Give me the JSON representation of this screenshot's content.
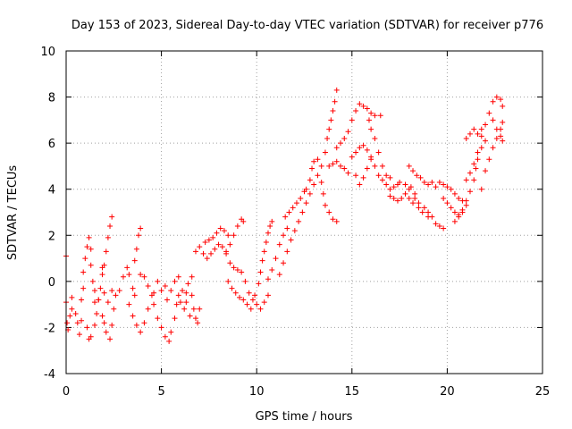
{
  "chart_data": {
    "type": "scatter",
    "title": "Day 153 of 2023, Sidereal Day-to-day VTEC variation (SDTVAR) for receiver p776",
    "xlabel": "GPS time / hours",
    "ylabel": "SDTVAR / TECUs",
    "xlim": [
      0,
      25
    ],
    "ylim": [
      -4,
      10
    ],
    "xticks": [
      "0",
      "5",
      "10",
      "15",
      "20",
      "25"
    ],
    "yticks": [
      "-4",
      "-2",
      "0",
      "2",
      "4",
      "6",
      "8",
      "10"
    ],
    "grid": true,
    "marker": "+",
    "series": [
      {
        "name": "SDTVAR",
        "color": "#ff0000",
        "points": [
          [
            0.0,
            1.1
          ],
          [
            0.0,
            -0.9
          ],
          [
            0.05,
            -1.8
          ],
          [
            0.1,
            -2.1
          ],
          [
            0.2,
            -1.5
          ],
          [
            0.3,
            -0.7
          ],
          [
            0.3,
            -1.2
          ],
          [
            0.5,
            -1.4
          ],
          [
            0.6,
            -1.8
          ],
          [
            0.7,
            -2.3
          ],
          [
            0.8,
            -1.7
          ],
          [
            0.8,
            -0.8
          ],
          [
            0.9,
            -0.3
          ],
          [
            0.9,
            0.4
          ],
          [
            1.0,
            1.0
          ],
          [
            1.1,
            1.5
          ],
          [
            1.2,
            1.9
          ],
          [
            1.3,
            1.4
          ],
          [
            1.3,
            0.7
          ],
          [
            1.4,
            0.0
          ],
          [
            1.5,
            -0.9
          ],
          [
            1.1,
            -2.0
          ],
          [
            1.2,
            -2.5
          ],
          [
            1.3,
            -2.4
          ],
          [
            1.5,
            -1.9
          ],
          [
            1.6,
            -1.4
          ],
          [
            1.7,
            -0.8
          ],
          [
            1.8,
            -0.3
          ],
          [
            1.9,
            0.3
          ],
          [
            1.9,
            0.6
          ],
          [
            2.0,
            0.7
          ],
          [
            2.1,
            1.3
          ],
          [
            2.2,
            1.9
          ],
          [
            2.3,
            2.4
          ],
          [
            2.4,
            2.8
          ],
          [
            1.9,
            -1.5
          ],
          [
            2.0,
            -1.8
          ],
          [
            2.1,
            -2.2
          ],
          [
            2.3,
            -2.5
          ],
          [
            2.4,
            -1.9
          ],
          [
            2.5,
            -1.2
          ],
          [
            2.6,
            -0.6
          ],
          [
            1.5,
            -0.4
          ],
          [
            1.7,
            -0.8
          ],
          [
            2.0,
            -0.5
          ],
          [
            2.2,
            -0.9
          ],
          [
            2.4,
            -0.4
          ],
          [
            2.8,
            -0.4
          ],
          [
            3.0,
            0.2
          ],
          [
            3.2,
            0.6
          ],
          [
            3.3,
            0.3
          ],
          [
            3.5,
            -0.3
          ],
          [
            3.6,
            -0.6
          ],
          [
            3.6,
            0.9
          ],
          [
            3.7,
            1.4
          ],
          [
            3.8,
            2.0
          ],
          [
            3.9,
            2.3
          ],
          [
            3.3,
            -1.0
          ],
          [
            3.5,
            -1.5
          ],
          [
            3.7,
            -1.9
          ],
          [
            3.9,
            -2.2
          ],
          [
            4.1,
            -1.8
          ],
          [
            4.3,
            -1.2
          ],
          [
            4.5,
            -0.6
          ],
          [
            3.9,
            0.3
          ],
          [
            4.1,
            0.2
          ],
          [
            4.3,
            -0.2
          ],
          [
            4.6,
            -0.5
          ],
          [
            4.8,
            0.0
          ],
          [
            5.0,
            -0.4
          ],
          [
            5.2,
            -0.2
          ],
          [
            4.6,
            -1.0
          ],
          [
            4.8,
            -1.6
          ],
          [
            5.0,
            -2.0
          ],
          [
            5.2,
            -2.4
          ],
          [
            5.4,
            -2.6
          ],
          [
            5.5,
            -2.2
          ],
          [
            5.7,
            -1.6
          ],
          [
            5.8,
            -1.0
          ],
          [
            5.9,
            -0.6
          ],
          [
            6.0,
            -0.9
          ],
          [
            6.2,
            -1.2
          ],
          [
            6.3,
            -0.5
          ],
          [
            6.4,
            -0.1
          ],
          [
            5.3,
            -0.8
          ],
          [
            5.5,
            -0.4
          ],
          [
            5.7,
            0.0
          ],
          [
            5.9,
            0.2
          ],
          [
            6.1,
            -0.4
          ],
          [
            6.3,
            -0.9
          ],
          [
            6.5,
            -1.5
          ],
          [
            6.6,
            -0.6
          ],
          [
            6.6,
            0.2
          ],
          [
            6.7,
            -1.2
          ],
          [
            6.8,
            -1.6
          ],
          [
            6.9,
            -1.8
          ],
          [
            7.0,
            -1.2
          ],
          [
            6.8,
            1.3
          ],
          [
            7.0,
            1.5
          ],
          [
            7.2,
            1.2
          ],
          [
            7.4,
            1.0
          ],
          [
            7.6,
            1.2
          ],
          [
            7.8,
            1.4
          ],
          [
            8.0,
            1.6
          ],
          [
            7.3,
            1.7
          ],
          [
            7.5,
            1.8
          ],
          [
            7.7,
            1.9
          ],
          [
            7.9,
            2.1
          ],
          [
            8.1,
            2.3
          ],
          [
            8.3,
            2.2
          ],
          [
            8.5,
            2.0
          ],
          [
            8.4,
            1.3
          ],
          [
            8.6,
            1.6
          ],
          [
            8.8,
            2.0
          ],
          [
            9.0,
            2.4
          ],
          [
            9.2,
            2.7
          ],
          [
            9.3,
            2.6
          ],
          [
            8.2,
            1.5
          ],
          [
            8.4,
            1.2
          ],
          [
            8.6,
            0.8
          ],
          [
            8.8,
            0.6
          ],
          [
            9.0,
            0.5
          ],
          [
            9.2,
            0.4
          ],
          [
            9.4,
            0.0
          ],
          [
            8.5,
            0.0
          ],
          [
            8.7,
            -0.3
          ],
          [
            8.9,
            -0.5
          ],
          [
            9.1,
            -0.7
          ],
          [
            9.3,
            -0.8
          ],
          [
            9.5,
            -1.0
          ],
          [
            9.7,
            -1.2
          ],
          [
            9.6,
            -0.5
          ],
          [
            9.8,
            -0.8
          ],
          [
            10.0,
            -1.0
          ],
          [
            10.2,
            -1.2
          ],
          [
            10.4,
            -0.9
          ],
          [
            10.6,
            -0.6
          ],
          [
            9.9,
            -0.6
          ],
          [
            10.1,
            -0.1
          ],
          [
            10.2,
            0.4
          ],
          [
            10.3,
            0.9
          ],
          [
            10.4,
            1.3
          ],
          [
            10.5,
            1.7
          ],
          [
            10.6,
            2.1
          ],
          [
            10.7,
            2.4
          ],
          [
            10.8,
            2.6
          ],
          [
            10.6,
            0.1
          ],
          [
            10.8,
            0.5
          ],
          [
            11.0,
            1.0
          ],
          [
            11.2,
            1.6
          ],
          [
            11.4,
            2.0
          ],
          [
            11.6,
            2.3
          ],
          [
            11.5,
            2.8
          ],
          [
            11.7,
            3.0
          ],
          [
            11.9,
            3.2
          ],
          [
            12.1,
            3.4
          ],
          [
            12.3,
            3.6
          ],
          [
            12.5,
            3.9
          ],
          [
            11.2,
            0.3
          ],
          [
            11.4,
            0.8
          ],
          [
            11.6,
            1.3
          ],
          [
            11.8,
            1.8
          ],
          [
            12.0,
            2.2
          ],
          [
            12.2,
            2.6
          ],
          [
            12.4,
            3.0
          ],
          [
            12.6,
            3.4
          ],
          [
            12.8,
            3.8
          ],
          [
            13.0,
            4.2
          ],
          [
            13.2,
            4.6
          ],
          [
            13.4,
            5.0
          ],
          [
            12.6,
            4.0
          ],
          [
            12.8,
            4.4
          ],
          [
            12.9,
            4.9
          ],
          [
            13.0,
            5.2
          ],
          [
            13.2,
            5.3
          ],
          [
            13.4,
            4.3
          ],
          [
            13.5,
            3.8
          ],
          [
            13.6,
            3.3
          ],
          [
            13.8,
            3.0
          ],
          [
            14.0,
            2.7
          ],
          [
            14.2,
            2.6
          ],
          [
            13.6,
            5.6
          ],
          [
            13.7,
            6.2
          ],
          [
            13.8,
            6.6
          ],
          [
            13.9,
            7.0
          ],
          [
            14.0,
            7.4
          ],
          [
            14.1,
            7.8
          ],
          [
            14.2,
            8.3
          ],
          [
            13.8,
            5.0
          ],
          [
            14.0,
            5.1
          ],
          [
            14.2,
            5.2
          ],
          [
            14.4,
            5.0
          ],
          [
            14.6,
            4.9
          ],
          [
            14.8,
            4.7
          ],
          [
            14.2,
            5.8
          ],
          [
            14.4,
            6.0
          ],
          [
            14.6,
            6.2
          ],
          [
            14.8,
            6.5
          ],
          [
            15.0,
            7.0
          ],
          [
            15.2,
            7.4
          ],
          [
            15.4,
            7.7
          ],
          [
            15.6,
            7.6
          ],
          [
            15.8,
            7.5
          ],
          [
            16.0,
            7.3
          ],
          [
            16.2,
            7.2
          ],
          [
            16.5,
            7.2
          ],
          [
            15.0,
            5.4
          ],
          [
            15.2,
            5.6
          ],
          [
            15.4,
            5.8
          ],
          [
            15.6,
            5.9
          ],
          [
            15.8,
            5.7
          ],
          [
            16.0,
            5.4
          ],
          [
            16.2,
            5.0
          ],
          [
            16.4,
            4.6
          ],
          [
            16.6,
            4.4
          ],
          [
            16.8,
            4.2
          ],
          [
            17.0,
            4.0
          ],
          [
            17.2,
            4.1
          ],
          [
            17.4,
            4.2
          ],
          [
            15.2,
            4.6
          ],
          [
            15.4,
            4.2
          ],
          [
            15.6,
            4.5
          ],
          [
            15.8,
            4.9
          ],
          [
            16.0,
            5.3
          ],
          [
            15.9,
            7.0
          ],
          [
            16.0,
            6.6
          ],
          [
            16.2,
            6.2
          ],
          [
            16.4,
            5.6
          ],
          [
            16.6,
            5.0
          ],
          [
            16.8,
            4.6
          ],
          [
            17.0,
            4.5
          ],
          [
            17.0,
            3.7
          ],
          [
            17.2,
            3.6
          ],
          [
            17.4,
            3.5
          ],
          [
            17.6,
            3.6
          ],
          [
            17.8,
            3.8
          ],
          [
            18.0,
            3.6
          ],
          [
            18.2,
            3.4
          ],
          [
            17.5,
            4.3
          ],
          [
            17.8,
            4.2
          ],
          [
            18.0,
            4.0
          ],
          [
            18.3,
            3.6
          ],
          [
            18.5,
            3.2
          ],
          [
            18.7,
            3.0
          ],
          [
            19.0,
            2.8
          ],
          [
            18.1,
            4.1
          ],
          [
            18.3,
            3.8
          ],
          [
            18.5,
            3.4
          ],
          [
            18.8,
            3.2
          ],
          [
            19.0,
            3.0
          ],
          [
            19.2,
            2.8
          ],
          [
            19.4,
            2.5
          ],
          [
            19.6,
            2.4
          ],
          [
            19.8,
            2.3
          ],
          [
            18.0,
            5.0
          ],
          [
            18.2,
            4.8
          ],
          [
            18.4,
            4.6
          ],
          [
            18.6,
            4.5
          ],
          [
            18.8,
            4.3
          ],
          [
            19.0,
            4.2
          ],
          [
            19.2,
            4.3
          ],
          [
            19.4,
            4.1
          ],
          [
            19.6,
            4.3
          ],
          [
            19.8,
            4.2
          ],
          [
            19.8,
            3.6
          ],
          [
            20.0,
            3.4
          ],
          [
            20.2,
            3.2
          ],
          [
            20.4,
            3.0
          ],
          [
            20.6,
            2.9
          ],
          [
            20.8,
            3.0
          ],
          [
            21.0,
            3.3
          ],
          [
            20.0,
            4.1
          ],
          [
            20.2,
            4.0
          ],
          [
            20.4,
            3.8
          ],
          [
            20.6,
            3.6
          ],
          [
            20.8,
            3.5
          ],
          [
            20.4,
            2.6
          ],
          [
            20.6,
            2.8
          ],
          [
            20.8,
            3.1
          ],
          [
            21.0,
            3.5
          ],
          [
            21.2,
            3.9
          ],
          [
            21.4,
            4.4
          ],
          [
            21.5,
            4.9
          ],
          [
            21.6,
            5.3
          ],
          [
            21.8,
            5.8
          ],
          [
            22.0,
            6.1
          ],
          [
            21.0,
            4.4
          ],
          [
            21.2,
            4.7
          ],
          [
            21.4,
            5.1
          ],
          [
            21.6,
            5.6
          ],
          [
            21.8,
            6.3
          ],
          [
            22.0,
            6.8
          ],
          [
            22.2,
            7.3
          ],
          [
            22.4,
            7.8
          ],
          [
            22.6,
            8.0
          ],
          [
            22.8,
            7.9
          ],
          [
            22.9,
            7.6
          ],
          [
            21.8,
            4.0
          ],
          [
            22.0,
            4.8
          ],
          [
            22.2,
            5.3
          ],
          [
            22.4,
            5.8
          ],
          [
            22.6,
            6.2
          ],
          [
            22.8,
            6.6
          ],
          [
            22.9,
            6.9
          ],
          [
            22.4,
            7.0
          ],
          [
            22.6,
            6.6
          ],
          [
            22.8,
            6.3
          ],
          [
            22.9,
            6.1
          ],
          [
            21.0,
            6.2
          ],
          [
            21.2,
            6.4
          ],
          [
            21.4,
            6.6
          ],
          [
            21.6,
            6.4
          ],
          [
            21.8,
            6.6
          ]
        ]
      }
    ]
  }
}
